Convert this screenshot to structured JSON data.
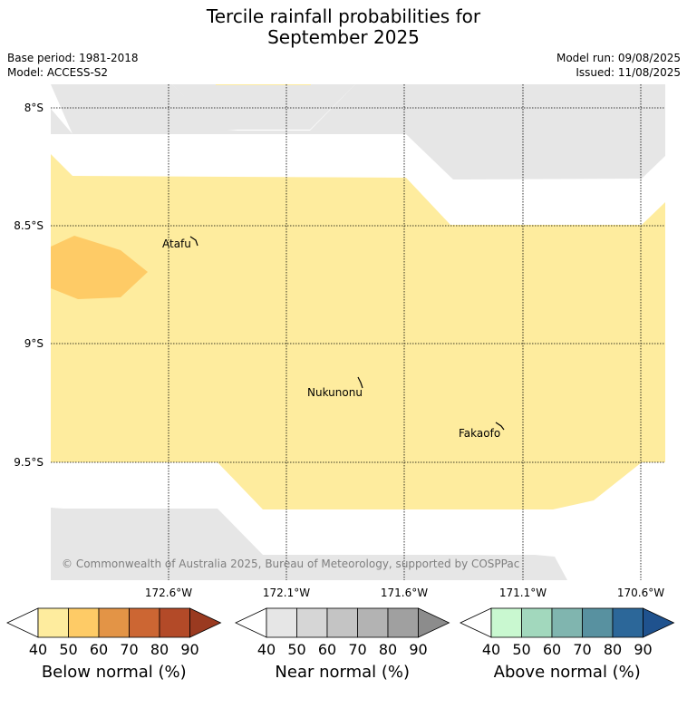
{
  "header": {
    "title_line1": "Tercile rainfall probabilities for",
    "title_line2": "September 2025",
    "base_period": "Base period: 1981-2018",
    "model": "Model: ACCESS-S2",
    "model_run": "Model run: 09/08/2025",
    "issued": "Issued: 11/08/2025"
  },
  "map": {
    "lat_labels": [
      "8°S",
      "8.5°S",
      "9°S",
      "9.5°S"
    ],
    "lon_labels": [
      "172.6°W",
      "172.1°W",
      "171.6°W",
      "171.1°W",
      "170.6°W"
    ],
    "places": [
      "Atafu",
      "Nukunonu",
      "Fakaofo"
    ],
    "copyright": "© Commonwealth of Australia 2025, Bureau of Meteorology, supported by COSPPac",
    "colors": {
      "near_normal_40": "#e6e6e6",
      "below_40": "#feec9e",
      "below_50": "#fecb66"
    }
  },
  "colorbars": [
    {
      "name": "below-normal",
      "label": "Below normal (%)",
      "ticks": [
        "40",
        "50",
        "60",
        "70",
        "80",
        "90"
      ],
      "colors": [
        "#ffffff",
        "#feec9e",
        "#fecb66",
        "#e39446",
        "#cc6633",
        "#b34a28",
        "#9a3a20"
      ]
    },
    {
      "name": "near-normal",
      "label": "Near normal (%)",
      "ticks": [
        "40",
        "50",
        "60",
        "70",
        "80",
        "90"
      ],
      "colors": [
        "#ffffff",
        "#e6e6e6",
        "#d6d6d6",
        "#c4c4c4",
        "#b3b3b3",
        "#a0a0a0",
        "#8c8c8c"
      ]
    },
    {
      "name": "above-normal",
      "label": "Above normal (%)",
      "ticks": [
        "40",
        "50",
        "60",
        "70",
        "80",
        "90"
      ],
      "colors": [
        "#ffffff",
        "#c9f8d0",
        "#a2d8bd",
        "#80b5af",
        "#5891a0",
        "#2c6799",
        "#1f528e"
      ]
    }
  ]
}
